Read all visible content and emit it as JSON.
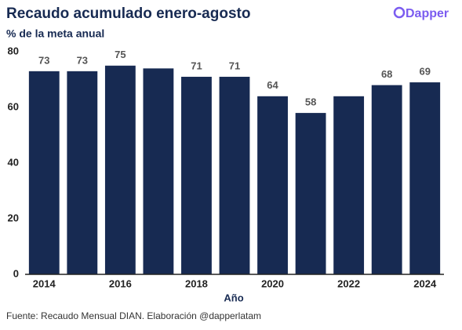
{
  "chart_data": {
    "type": "bar",
    "title": "Recaudo acumulado enero-agosto",
    "subtitle": "% de la meta anual",
    "brand": "Dapper",
    "x_label": "Año",
    "source": "Fuente: Recaudo Mensual DIAN. Elaboración @dapperlatam",
    "categories": [
      "2014",
      null,
      "2016",
      null,
      "2018",
      null,
      "2020",
      null,
      "2022",
      null,
      "2024"
    ],
    "values": [
      73,
      73,
      75,
      74,
      71,
      71,
      64,
      58,
      64,
      68,
      69
    ],
    "value_labels": [
      "73",
      "73",
      "75",
      null,
      "71",
      "71",
      "64",
      "58",
      null,
      "68",
      "69"
    ],
    "color": "#172a52",
    "ylim": [
      0,
      80
    ],
    "yticks": [
      0,
      20,
      40,
      60,
      80
    ],
    "grid": false
  }
}
